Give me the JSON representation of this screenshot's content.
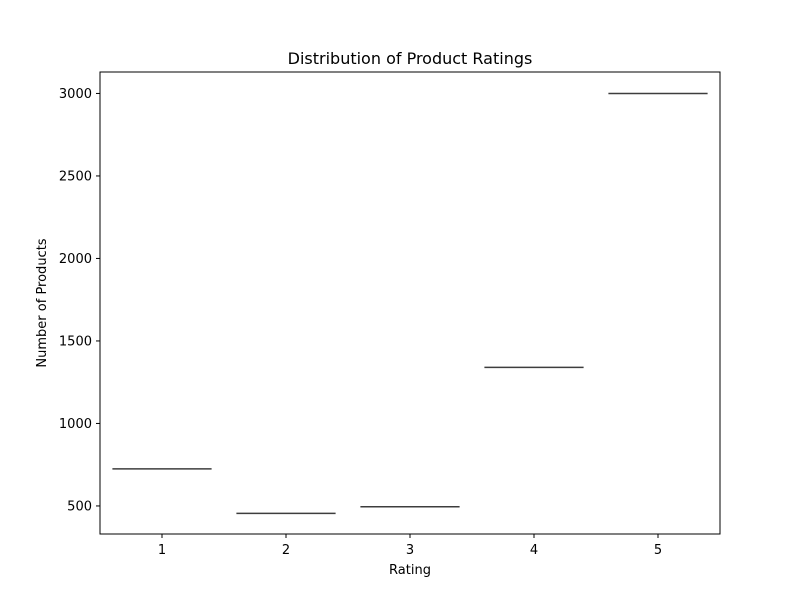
{
  "chart_data": {
    "type": "box",
    "title": "Distribution of Product Ratings",
    "xlabel": "Rating",
    "ylabel": "Number of Products",
    "categories": [
      "1",
      "2",
      "3",
      "4",
      "5"
    ],
    "values": [
      725,
      455,
      495,
      1340,
      3000
    ],
    "ylim": [
      330,
      3130
    ],
    "yticks": [
      500,
      1000,
      1500,
      2000,
      2500,
      3000
    ],
    "grid": false,
    "colors": {
      "median_line": "#3d3d3d",
      "axes": "#000000"
    }
  }
}
